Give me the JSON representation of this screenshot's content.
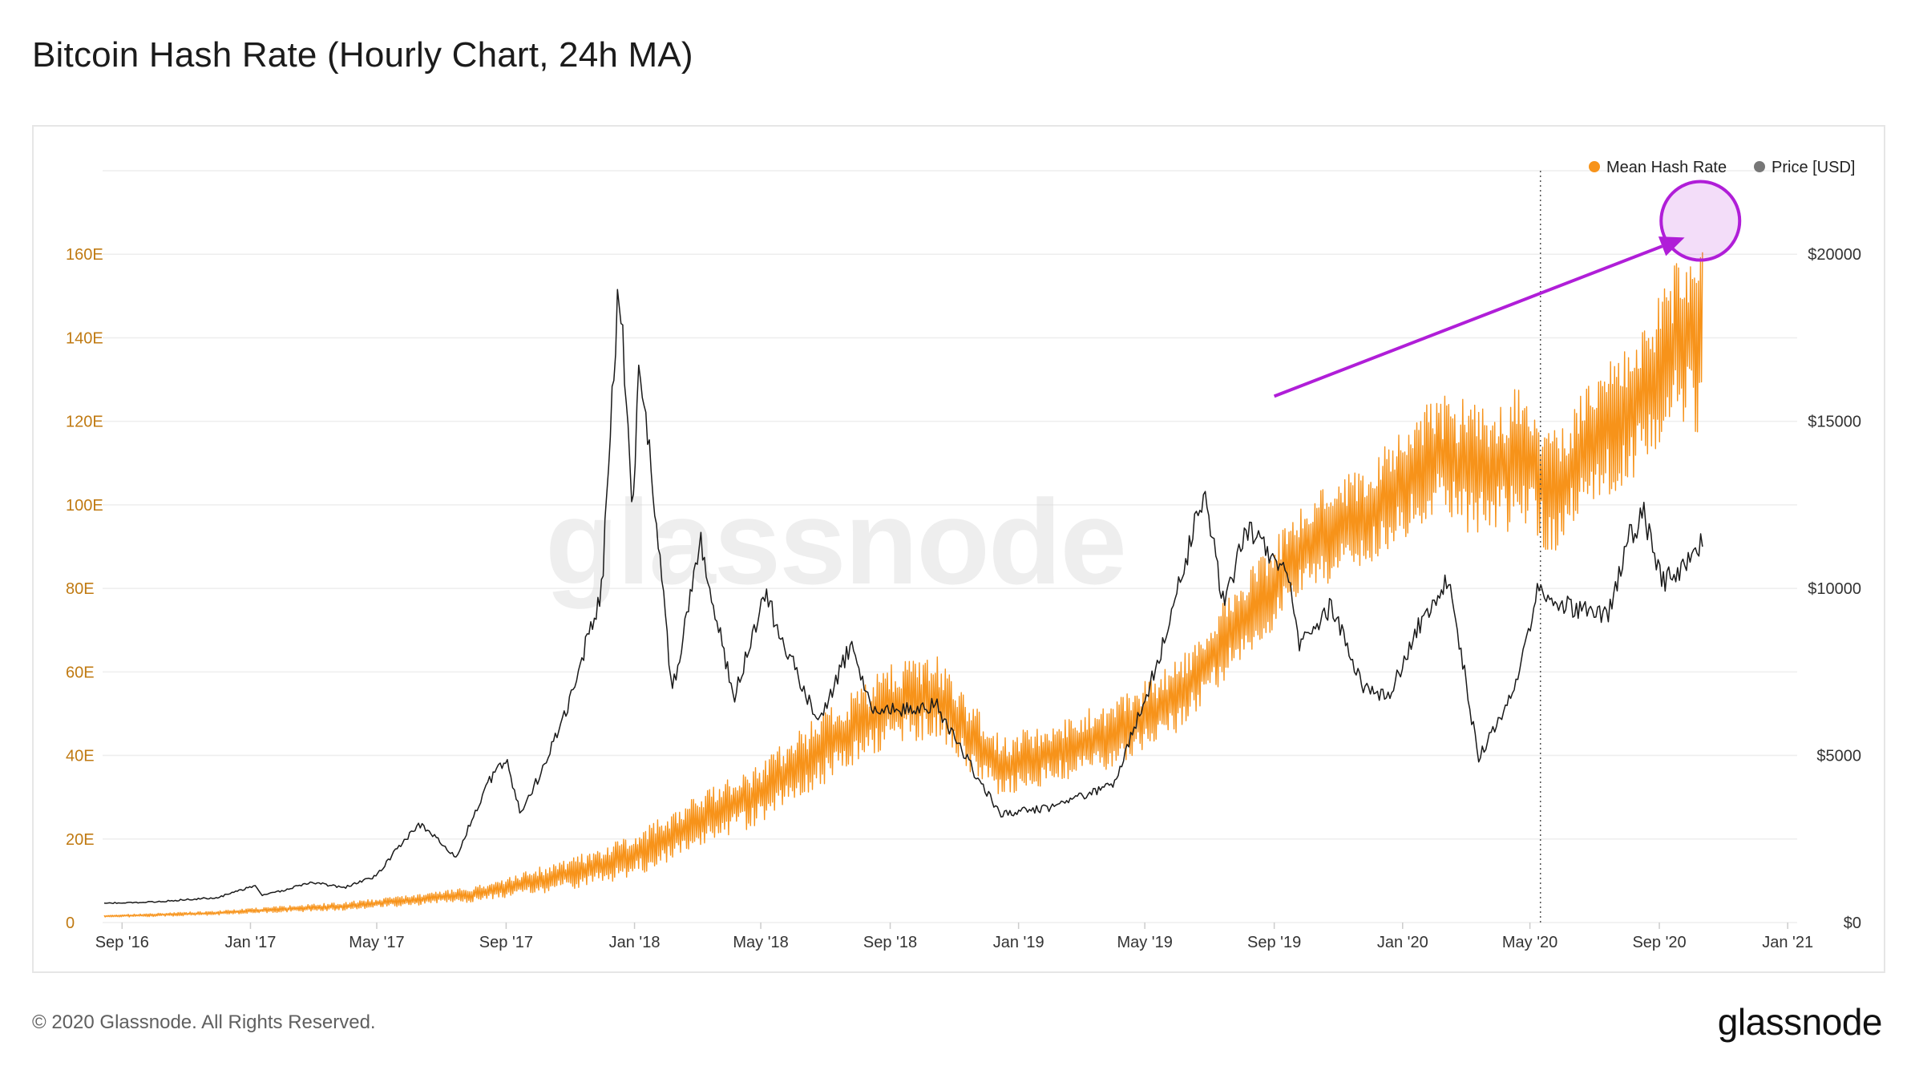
{
  "page": {
    "title": "Bitcoin Hash Rate (Hourly Chart, 24h MA)",
    "copyright": "© 2020 Glassnode. All Rights Reserved.",
    "brand": "glassnode",
    "watermark": "glassnode"
  },
  "colors": {
    "hash_rate": "#f7931a",
    "price": "#1a1a1a",
    "annotation": "#b01ed8",
    "left_axis_text": "#c07a12",
    "grid": "#eeeeee"
  },
  "chart_data": {
    "type": "line",
    "title": "Bitcoin Hash Rate (Hourly Chart, 24h MA)",
    "x_range": [
      "2016-08-15",
      "2021-01-10"
    ],
    "xticks": [
      "Sep '16",
      "Jan '17",
      "May '17",
      "Sep '17",
      "Jan '18",
      "May '18",
      "Sep '18",
      "Jan '19",
      "May '19",
      "Sep '19",
      "Jan '20",
      "May '20",
      "Sep '20",
      "Jan '21"
    ],
    "xtick_dates": [
      "2016-09-01",
      "2017-01-01",
      "2017-05-01",
      "2017-09-01",
      "2018-01-01",
      "2018-05-01",
      "2018-09-01",
      "2019-01-01",
      "2019-05-01",
      "2019-09-01",
      "2020-01-01",
      "2020-05-01",
      "2020-09-01",
      "2021-01-01"
    ],
    "y_left": {
      "label": "",
      "ticks": [
        "0",
        "20E",
        "40E",
        "60E",
        "80E",
        "100E",
        "120E",
        "140E",
        "160E"
      ],
      "tick_values": [
        0,
        20,
        40,
        60,
        80,
        100,
        120,
        140,
        160
      ],
      "range": [
        0,
        180
      ],
      "unit": "EH/s"
    },
    "y_right": {
      "label": "",
      "ticks": [
        "$0",
        "$5000",
        "$10000",
        "$15000",
        "$20000"
      ],
      "tick_values": [
        0,
        5000,
        10000,
        15000,
        20000
      ],
      "range": [
        0,
        22500
      ]
    },
    "grid": true,
    "legend": {
      "position": "top-right"
    },
    "vertical_marker": {
      "date": "2020-05-11",
      "style": "dotted"
    },
    "annotation": {
      "type": "arrow-and-circle",
      "arrow_from": [
        "2019-09-01",
        126
      ],
      "arrow_to": [
        "2020-09-25",
        164
      ],
      "circle_at": [
        "2020-10-10",
        168
      ]
    },
    "series": [
      {
        "name": "Mean Hash Rate",
        "axis": "left",
        "points": [
          [
            "2016-08-15",
            1.5,
            0.2
          ],
          [
            "2016-10-01",
            1.8,
            0.3
          ],
          [
            "2016-12-01",
            2.3,
            0.4
          ],
          [
            "2017-02-01",
            3.2,
            0.6
          ],
          [
            "2017-04-01",
            3.9,
            0.8
          ],
          [
            "2017-06-01",
            5.3,
            1.0
          ],
          [
            "2017-08-01",
            6.8,
            1.5
          ],
          [
            "2017-10-01",
            10.0,
            2.5
          ],
          [
            "2017-12-01",
            13.5,
            3.5
          ],
          [
            "2018-01-15",
            18.0,
            4.5
          ],
          [
            "2018-03-01",
            24.0,
            5.0
          ],
          [
            "2018-05-01",
            31.0,
            6.0
          ],
          [
            "2018-07-01",
            42.0,
            7.0
          ],
          [
            "2018-09-01",
            52.0,
            8.0
          ],
          [
            "2018-10-15",
            54.0,
            8.0
          ],
          [
            "2018-11-15",
            45.0,
            7.0
          ],
          [
            "2018-12-15",
            37.0,
            6.0
          ],
          [
            "2019-02-01",
            41.0,
            6.0
          ],
          [
            "2019-04-01",
            45.0,
            6.5
          ],
          [
            "2019-06-01",
            54.0,
            7.0
          ],
          [
            "2019-08-01",
            72.0,
            8.0
          ],
          [
            "2019-10-01",
            90.0,
            9.0
          ],
          [
            "2019-12-01",
            98.0,
            10.0
          ],
          [
            "2020-02-01",
            112.0,
            12.0
          ],
          [
            "2020-03-15",
            108.0,
            13.0
          ],
          [
            "2020-05-01",
            112.0,
            14.0
          ],
          [
            "2020-05-20",
            102.0,
            12.0
          ],
          [
            "2020-07-01",
            115.0,
            12.0
          ],
          [
            "2020-08-15",
            125.0,
            14.0
          ],
          [
            "2020-09-20",
            140.0,
            16.0
          ],
          [
            "2020-10-12",
            138.0,
            18.0
          ]
        ],
        "point_format": [
          "date",
          "mean_EH_s",
          "hourly_spread_EH_s"
        ]
      },
      {
        "name": "Price [USD]",
        "axis": "right",
        "points": [
          [
            "2016-08-15",
            575
          ],
          [
            "2016-10-01",
            615
          ],
          [
            "2016-12-01",
            750
          ],
          [
            "2017-01-05",
            1100
          ],
          [
            "2017-01-12",
            800
          ],
          [
            "2017-03-01",
            1200
          ],
          [
            "2017-04-01",
            1050
          ],
          [
            "2017-05-01",
            1400
          ],
          [
            "2017-05-25",
            2400
          ],
          [
            "2017-06-12",
            2950
          ],
          [
            "2017-07-15",
            1950
          ],
          [
            "2017-08-15",
            4200
          ],
          [
            "2017-09-01",
            4900
          ],
          [
            "2017-09-15",
            3200
          ],
          [
            "2017-10-01",
            4300
          ],
          [
            "2017-11-01",
            6700
          ],
          [
            "2017-12-01",
            10000
          ],
          [
            "2017-12-17",
            19300
          ],
          [
            "2017-12-30",
            12500
          ],
          [
            "2018-01-06",
            17000
          ],
          [
            "2018-02-06",
            6900
          ],
          [
            "2018-03-05",
            11400
          ],
          [
            "2018-04-05",
            6700
          ],
          [
            "2018-05-05",
            9800
          ],
          [
            "2018-06-25",
            5900
          ],
          [
            "2018-07-25",
            8300
          ],
          [
            "2018-08-15",
            6300
          ],
          [
            "2018-10-15",
            6500
          ],
          [
            "2018-11-20",
            4500
          ],
          [
            "2018-12-15",
            3250
          ],
          [
            "2019-02-01",
            3450
          ],
          [
            "2019-04-01",
            4100
          ],
          [
            "2019-05-15",
            7900
          ],
          [
            "2019-06-26",
            12900
          ],
          [
            "2019-07-15",
            9500
          ],
          [
            "2019-08-06",
            11800
          ],
          [
            "2019-09-15",
            10300
          ],
          [
            "2019-09-25",
            8300
          ],
          [
            "2019-10-26",
            9500
          ],
          [
            "2019-11-25",
            7000
          ],
          [
            "2019-12-18",
            6700
          ],
          [
            "2020-01-15",
            8800
          ],
          [
            "2020-02-14",
            10300
          ],
          [
            "2020-03-13",
            4900
          ],
          [
            "2020-04-15",
            6900
          ],
          [
            "2020-05-08",
            9900
          ],
          [
            "2020-06-15",
            9400
          ],
          [
            "2020-07-15",
            9200
          ],
          [
            "2020-08-01",
            11500
          ],
          [
            "2020-08-17",
            12200
          ],
          [
            "2020-09-05",
            10200
          ],
          [
            "2020-09-25",
            10700
          ],
          [
            "2020-10-12",
            11400
          ]
        ]
      }
    ]
  }
}
